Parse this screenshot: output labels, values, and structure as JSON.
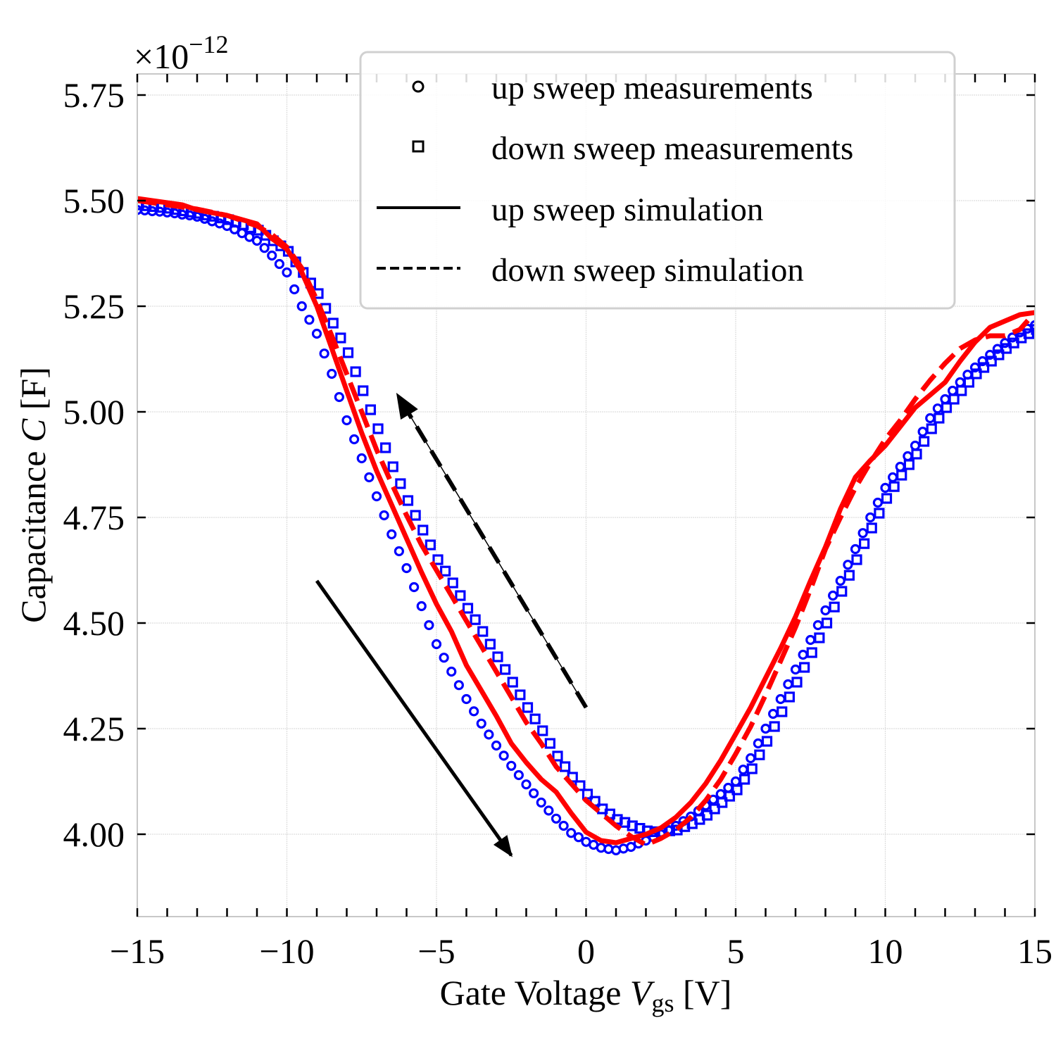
{
  "chart_data": {
    "type": "scatter",
    "title": "",
    "xlabel": "Gate Voltage V_gs [V]",
    "xlabel_parts": {
      "main": "Gate Voltage ",
      "var": "V",
      "sub": "gs",
      "unit": " [V]"
    },
    "ylabel": "Capacitance C [F]",
    "ylabel_parts": {
      "main": "Capacitance ",
      "var": "C",
      "unit": " [F]"
    },
    "y_multiplier": "×10−12",
    "y_multiplier_parts": {
      "base": "×10",
      "exp": "−12"
    },
    "xlim": [
      -15,
      15
    ],
    "ylim": [
      3.805,
      5.8
    ],
    "grid": true,
    "x_ticks": [
      -15,
      -10,
      -5,
      0,
      5,
      10,
      15
    ],
    "x_tick_labels": [
      "−15",
      "−10",
      "−5",
      "0",
      "5",
      "10",
      "15"
    ],
    "x_minor_step": 1,
    "y_ticks": [
      4.0,
      4.25,
      4.5,
      4.75,
      5.0,
      5.25,
      5.5,
      5.75
    ],
    "y_tick_labels": [
      "4.00",
      "4.25",
      "4.50",
      "4.75",
      "5.00",
      "5.25",
      "5.50",
      "5.75"
    ],
    "legend_position": "top-right",
    "legend": [
      {
        "label": "up sweep measurements",
        "marker": "circle"
      },
      {
        "label": "down sweep measurements",
        "marker": "square"
      },
      {
        "label": "up sweep simulation",
        "line": "solid"
      },
      {
        "label": "down sweep simulation",
        "line": "dashed"
      }
    ],
    "colors": {
      "measurement": "#0000ff",
      "simulation": "#ff0000",
      "arrow": "#000000"
    },
    "measurement_x": {
      "start": -15,
      "stop": 15,
      "step": 0.25
    },
    "series": [
      {
        "name": "up sweep measurements",
        "kind": "marker-circle",
        "values": [
          5.478,
          5.477,
          5.475,
          5.474,
          5.472,
          5.47,
          5.467,
          5.465,
          5.462,
          5.457,
          5.451,
          5.446,
          5.44,
          5.432,
          5.423,
          5.414,
          5.405,
          5.388,
          5.37,
          5.35,
          5.33,
          5.29,
          5.25,
          5.218,
          5.185,
          5.138,
          5.09,
          5.035,
          4.98,
          4.935,
          4.89,
          4.845,
          4.8,
          4.755,
          4.71,
          4.67,
          4.63,
          4.585,
          4.54,
          4.495,
          4.45,
          4.418,
          4.385,
          4.353,
          4.32,
          4.291,
          4.262,
          4.236,
          4.21,
          4.186,
          4.162,
          4.14,
          4.118,
          4.097,
          4.075,
          4.056,
          4.037,
          4.02,
          4.003,
          3.993,
          3.982,
          3.975,
          3.968,
          3.965,
          3.962,
          3.966,
          3.97,
          3.978,
          3.985,
          3.993,
          4.0,
          4.01,
          4.02,
          4.031,
          4.042,
          4.055,
          4.068,
          4.082,
          4.095,
          4.11,
          4.125,
          4.153,
          4.18,
          4.215,
          4.25,
          4.285,
          4.32,
          4.355,
          4.39,
          4.425,
          4.46,
          4.495,
          4.53,
          4.565,
          4.6,
          4.638,
          4.675,
          4.713,
          4.75,
          4.785,
          4.82,
          4.845,
          4.87,
          4.895,
          4.92,
          4.953,
          4.985,
          5.008,
          5.03,
          5.05,
          5.07,
          5.088,
          5.105,
          5.12,
          5.135,
          5.149,
          5.163,
          5.176,
          5.188,
          5.197,
          5.205
        ]
      },
      {
        "name": "down sweep measurements",
        "kind": "marker-square",
        "values": [
          5.49,
          5.488,
          5.486,
          5.484,
          5.482,
          5.479,
          5.476,
          5.473,
          5.47,
          5.466,
          5.463,
          5.459,
          5.455,
          5.449,
          5.443,
          5.436,
          5.43,
          5.418,
          5.405,
          5.393,
          5.38,
          5.355,
          5.33,
          5.305,
          5.28,
          5.245,
          5.21,
          5.175,
          5.14,
          5.095,
          5.05,
          5.005,
          4.96,
          4.915,
          4.87,
          4.83,
          4.79,
          4.755,
          4.72,
          4.685,
          4.65,
          4.623,
          4.595,
          4.565,
          4.535,
          4.508,
          4.48,
          4.45,
          4.42,
          4.39,
          4.36,
          4.33,
          4.3,
          4.273,
          4.245,
          4.215,
          4.185,
          4.16,
          4.135,
          4.115,
          4.095,
          4.078,
          4.06,
          4.048,
          4.035,
          4.028,
          4.02,
          4.014,
          4.008,
          4.006,
          4.005,
          4.008,
          4.01,
          4.018,
          4.025,
          4.035,
          4.045,
          4.06,
          4.075,
          4.09,
          4.105,
          4.13,
          4.155,
          4.188,
          4.22,
          4.255,
          4.29,
          4.325,
          4.36,
          4.395,
          4.43,
          4.465,
          4.5,
          4.538,
          4.575,
          4.613,
          4.65,
          4.688,
          4.725,
          4.76,
          4.795,
          4.823,
          4.85,
          4.875,
          4.9,
          4.93,
          4.96,
          4.985,
          5.01,
          5.03,
          5.05,
          5.07,
          5.09,
          5.105,
          5.12,
          5.135,
          5.15,
          5.163,
          5.175,
          5.185,
          5.195
        ]
      },
      {
        "name": "up sweep simulation",
        "kind": "line-solid",
        "x": [
          -15,
          -14,
          -13.5,
          -13,
          -12,
          -11,
          -10.5,
          -10,
          -9.5,
          -9,
          -8.5,
          -8,
          -7.5,
          -7,
          -6.5,
          -6,
          -5.5,
          -5,
          -4.5,
          -4,
          -3.5,
          -3,
          -2.5,
          -2,
          -1.5,
          -1,
          -0.5,
          0,
          0.5,
          1,
          1.5,
          2,
          2.5,
          3,
          3.5,
          4,
          4.5,
          5,
          5.5,
          6,
          6.5,
          7,
          7.5,
          8,
          8.5,
          9,
          9.5,
          10,
          10.5,
          11,
          11.5,
          12,
          12.5,
          13,
          13.5,
          14,
          14.5,
          15
        ],
        "values": [
          5.505,
          5.495,
          5.49,
          5.478,
          5.465,
          5.445,
          5.41,
          5.385,
          5.33,
          5.25,
          5.15,
          5.05,
          4.95,
          4.86,
          4.78,
          4.7,
          4.62,
          4.545,
          4.48,
          4.4,
          4.34,
          4.28,
          4.215,
          4.17,
          4.13,
          4.1,
          4.05,
          4.005,
          3.985,
          3.98,
          3.99,
          4.0,
          4.015,
          4.04,
          4.075,
          4.12,
          4.175,
          4.237,
          4.3,
          4.37,
          4.44,
          4.515,
          4.6,
          4.68,
          4.77,
          4.845,
          4.885,
          4.92,
          4.965,
          5.01,
          5.04,
          5.07,
          5.12,
          5.165,
          5.2,
          5.215,
          5.23,
          5.235
        ]
      },
      {
        "name": "down sweep simulation",
        "kind": "line-dashed",
        "x": [
          -15,
          -14,
          -13,
          -12,
          -11,
          -10.5,
          -10,
          -9.5,
          -9,
          -8.5,
          -8,
          -7.5,
          -7,
          -6.5,
          -6,
          -5.5,
          -5,
          -4.5,
          -4,
          -3.5,
          -3,
          -2.5,
          -2,
          -1.5,
          -1,
          -0.5,
          0,
          0.5,
          1,
          1.5,
          2,
          2.5,
          3,
          3.5,
          4,
          4.5,
          5,
          5.5,
          6,
          6.5,
          7,
          7.5,
          8,
          8.5,
          9,
          9.5,
          10,
          10.5,
          11,
          11.5,
          12,
          12.5,
          13,
          13.5,
          14,
          14.5,
          15
        ],
        "values": [
          5.5,
          5.49,
          5.48,
          5.465,
          5.44,
          5.42,
          5.39,
          5.34,
          5.265,
          5.18,
          5.09,
          5.0,
          4.91,
          4.83,
          4.755,
          4.685,
          4.625,
          4.565,
          4.505,
          4.445,
          4.385,
          4.325,
          4.265,
          4.215,
          4.16,
          4.12,
          4.08,
          4.05,
          4.02,
          3.995,
          3.975,
          3.99,
          4.01,
          4.04,
          4.08,
          4.13,
          4.19,
          4.255,
          4.33,
          4.41,
          4.49,
          4.58,
          4.675,
          4.75,
          4.82,
          4.88,
          4.935,
          4.98,
          5.03,
          5.075,
          5.115,
          5.15,
          5.17,
          5.18,
          5.18,
          5.195,
          5.235
        ]
      }
    ],
    "annotations": [
      {
        "name": "up-sweep-direction-arrow",
        "style": "solid",
        "from": [
          -9.0,
          4.6
        ],
        "to": [
          -2.5,
          3.95
        ]
      },
      {
        "name": "down-sweep-direction-arrow",
        "style": "dashed",
        "from": [
          0.0,
          4.3
        ],
        "to": [
          -6.3,
          5.04
        ]
      }
    ]
  }
}
